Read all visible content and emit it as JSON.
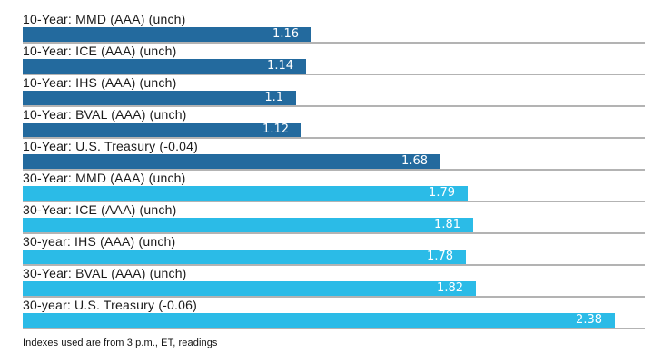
{
  "chart_data": {
    "type": "bar",
    "orientation": "horizontal",
    "title": "",
    "xlabel": "",
    "ylabel": "",
    "xlim": [
      0,
      2.61
    ],
    "grid": false,
    "legend": "none",
    "axis_ticks": "none (values shown as labels inside bars)",
    "categories": [
      "10-Year: MMD (AAA) (unch)",
      "10-Year: ICE (AAA) (unch)",
      "10-Year: IHS (AAA) (unch)",
      "10-Year: BVAL (AAA) (unch)",
      "10-Year: U.S. Treasury (-0.04)",
      "30-Year: MMD (AAA) (unch)",
      "30-Year: ICE (AAA) (unch)",
      "30-year: IHS (AAA) (unch)",
      "30-Year: BVAL (AAA) (unch)",
      "30-year: U.S. Treasury (-0.06)"
    ],
    "values": [
      1.16,
      1.14,
      1.1,
      1.12,
      1.68,
      1.79,
      1.81,
      1.78,
      1.82,
      2.38
    ],
    "rows": [
      {
        "label": "10-Year: MMD (AAA) (unch)",
        "value": 1.16,
        "display": "1.16",
        "series": "ten"
      },
      {
        "label": "10-Year: ICE (AAA) (unch)",
        "value": 1.14,
        "display": "1.14",
        "series": "ten"
      },
      {
        "label": "10-Year: IHS (AAA) (unch)",
        "value": 1.1,
        "display": "1.1",
        "series": "ten"
      },
      {
        "label": "10-Year: BVAL (AAA) (unch)",
        "value": 1.12,
        "display": "1.12",
        "series": "ten"
      },
      {
        "label": "10-Year: U.S. Treasury (-0.04)",
        "value": 1.68,
        "display": "1.68",
        "series": "ten"
      },
      {
        "label": "30-Year: MMD (AAA) (unch)",
        "value": 1.79,
        "display": "1.79",
        "series": "thirty"
      },
      {
        "label": "30-Year: ICE (AAA) (unch)",
        "value": 1.81,
        "display": "1.81",
        "series": "thirty"
      },
      {
        "label": "30-year: IHS (AAA) (unch)",
        "value": 1.78,
        "display": "1.78",
        "series": "thirty"
      },
      {
        "label": "30-Year: BVAL (AAA) (unch)",
        "value": 1.82,
        "display": "1.82",
        "series": "thirty"
      },
      {
        "label": "30-year: U.S. Treasury (-0.06)",
        "value": 2.38,
        "display": "2.38",
        "series": "thirty"
      }
    ],
    "colors": {
      "ten": "#236a9e",
      "thirty": "#2bbbe7",
      "baseline": "#b3b3b3",
      "value_text": "#ffffff",
      "label_text": "#1a1a1a"
    },
    "footnote": "Indexes used are from 3 p.m., ET, readings"
  }
}
